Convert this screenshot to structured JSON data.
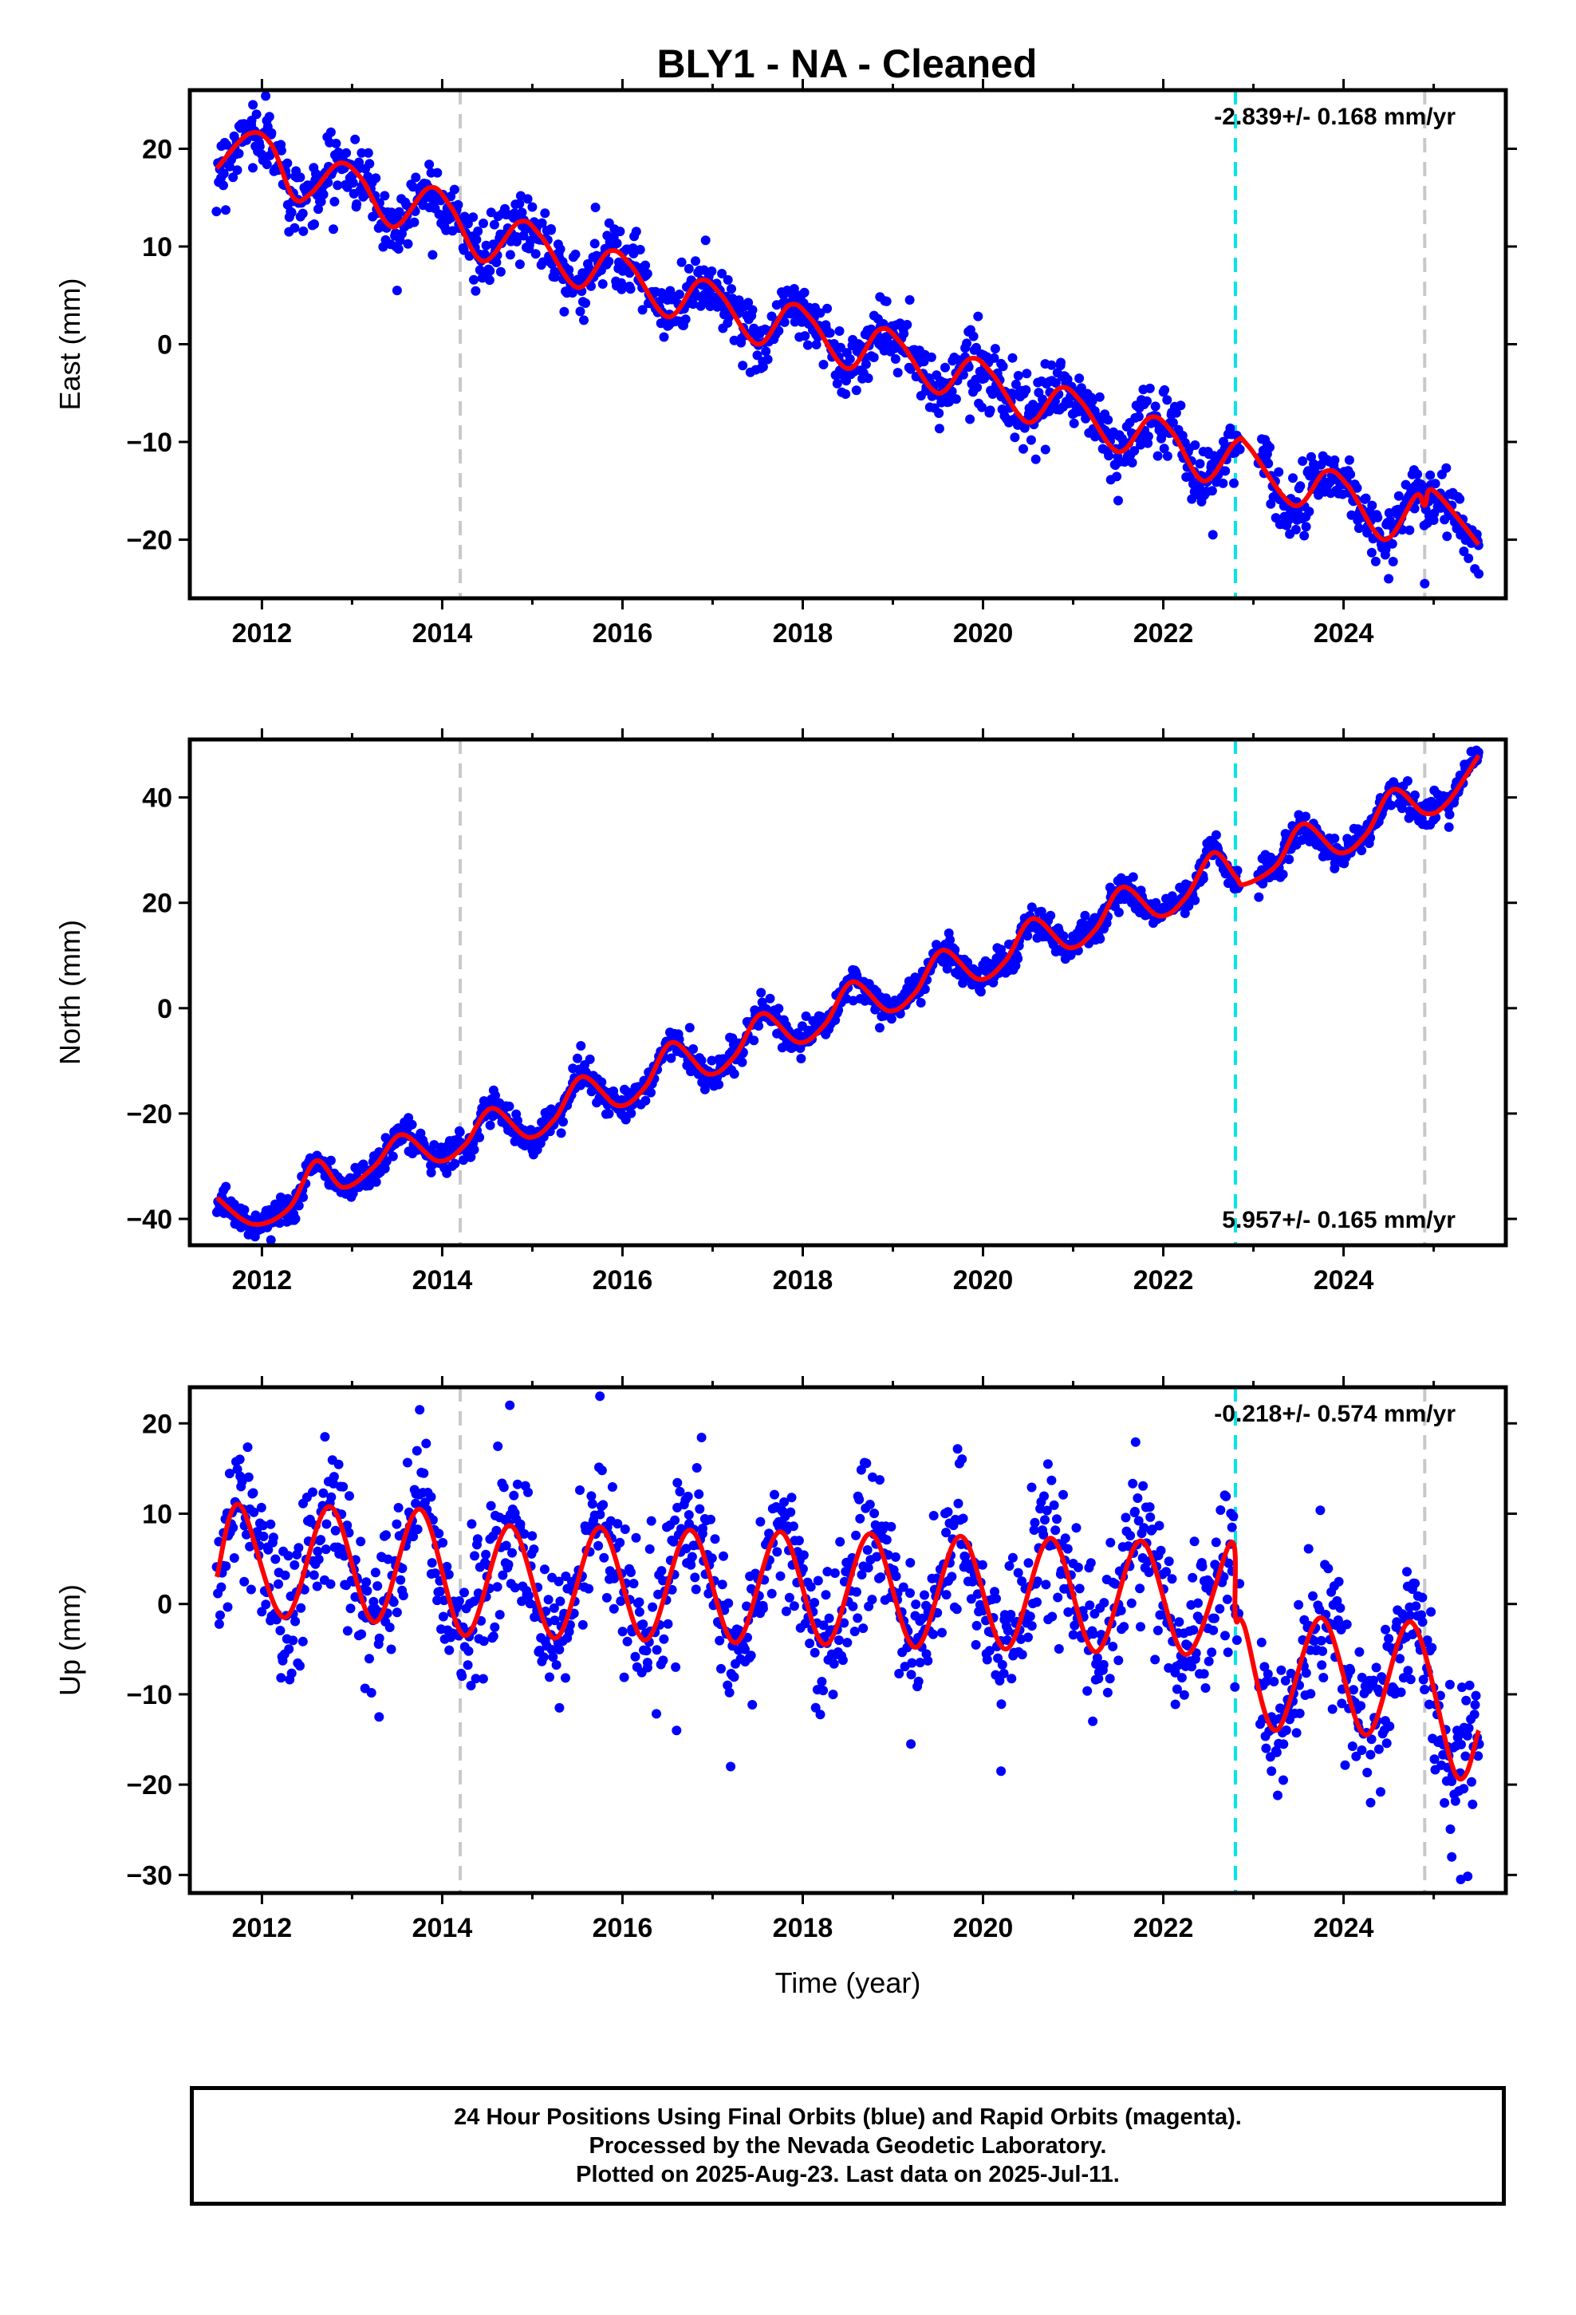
{
  "title": "BLY1  - NA - Cleaned",
  "footer": {
    "line1": "24 Hour Positions Using Final Orbits (blue) and Rapid Orbits (magenta).",
    "line2": "Processed by the Nevada Geodetic Laboratory.",
    "line3": "Plotted on 2025-Aug-23. Last data on 2025-Jul-11."
  },
  "colors": {
    "data_points": "#0000ff",
    "model_line": "#ff0000",
    "equipment_change": "#c8c8c8",
    "earthquake": "#00e5e5"
  },
  "chart_data": [
    {
      "type": "scatter",
      "component": "east",
      "ylabel": "East (mm)",
      "xlabel": "",
      "xlim": [
        2011.2,
        2025.8
      ],
      "ylim": [
        -26,
        26
      ],
      "xticks": [
        2012,
        2014,
        2016,
        2018,
        2020,
        2022,
        2024
      ],
      "yticks": [
        -20,
        -10,
        0,
        10,
        20
      ],
      "rate_text": "-2.839+/- 0.168 mm/yr",
      "rate_mm_per_yr": -2.839,
      "rate_sigma": 0.168,
      "gray_lines": [
        2014.2,
        2024.9
      ],
      "cyan_lines": [
        2022.8
      ],
      "model_knots": [
        [
          2011.5,
          18.0
        ],
        [
          2011.85,
          21.5
        ],
        [
          2012.1,
          20.5
        ],
        [
          2012.35,
          15.0
        ],
        [
          2012.55,
          15.5
        ],
        [
          2012.85,
          18.5
        ],
        [
          2013.1,
          17.0
        ],
        [
          2013.45,
          12.0
        ],
        [
          2013.85,
          16.0
        ],
        [
          2014.1,
          14.0
        ],
        [
          2014.45,
          8.5
        ],
        [
          2014.85,
          12.5
        ],
        [
          2015.1,
          11.0
        ],
        [
          2015.5,
          5.8
        ],
        [
          2015.85,
          9.5
        ],
        [
          2016.1,
          8.0
        ],
        [
          2016.5,
          2.8
        ],
        [
          2016.85,
          6.5
        ],
        [
          2017.1,
          5.0
        ],
        [
          2017.5,
          0.0
        ],
        [
          2017.85,
          4.0
        ],
        [
          2018.1,
          2.5
        ],
        [
          2018.5,
          -2.5
        ],
        [
          2018.85,
          1.5
        ],
        [
          2019.1,
          0.0
        ],
        [
          2019.5,
          -5.0
        ],
        [
          2019.85,
          -1.5
        ],
        [
          2020.1,
          -3.0
        ],
        [
          2020.5,
          -8.0
        ],
        [
          2020.85,
          -4.5
        ],
        [
          2021.1,
          -6.0
        ],
        [
          2021.5,
          -11.0
        ],
        [
          2021.85,
          -7.5
        ],
        [
          2022.1,
          -9.0
        ],
        [
          2022.45,
          -14.0
        ],
        [
          2022.8,
          -10.0
        ],
        [
          2022.95,
          -10.5
        ],
        [
          2023.45,
          -16.5
        ],
        [
          2023.8,
          -13.0
        ],
        [
          2024.05,
          -14.5
        ],
        [
          2024.45,
          -20.0
        ],
        [
          2024.8,
          -15.5
        ],
        [
          2024.9,
          -16.5
        ],
        [
          2025.0,
          -15.0
        ],
        [
          2025.5,
          -20.5
        ]
      ],
      "scatter_noise_mm": 1.6,
      "outliers": [
        [
          2011.9,
          24.5
        ],
        [
          2012.3,
          11.5
        ],
        [
          2013.5,
          5.5
        ],
        [
          2015.7,
          14.0
        ],
        [
          2021.5,
          -16.0
        ],
        [
          2022.55,
          -19.5
        ],
        [
          2024.5,
          -24.0
        ],
        [
          2024.9,
          -24.5
        ],
        [
          2025.5,
          -23.5
        ],
        [
          2025.0,
          -18.0
        ]
      ]
    },
    {
      "type": "scatter",
      "component": "north",
      "ylabel": "North (mm)",
      "xlabel": "",
      "xlim": [
        2011.2,
        2025.8
      ],
      "ylim": [
        -45,
        51
      ],
      "xticks": [
        2012,
        2014,
        2016,
        2018,
        2020,
        2022,
        2024
      ],
      "yticks": [
        -40,
        -20,
        0,
        20,
        40
      ],
      "rate_text": "5.957+/- 0.165 mm/yr",
      "rate_mm_per_yr": 5.957,
      "rate_sigma": 0.165,
      "gray_lines": [
        2014.2,
        2024.9
      ],
      "cyan_lines": [
        2022.8
      ],
      "model_knots": [
        [
          2011.5,
          -36.0
        ],
        [
          2011.9,
          -41.0
        ],
        [
          2012.3,
          -38.0
        ],
        [
          2012.6,
          -29.0
        ],
        [
          2012.9,
          -34.0
        ],
        [
          2013.25,
          -30.0
        ],
        [
          2013.55,
          -24.0
        ],
        [
          2013.95,
          -29.0
        ],
        [
          2014.25,
          -26.0
        ],
        [
          2014.55,
          -19.0
        ],
        [
          2014.95,
          -24.5
        ],
        [
          2015.25,
          -21.0
        ],
        [
          2015.55,
          -13.0
        ],
        [
          2015.95,
          -18.5
        ],
        [
          2016.25,
          -15.0
        ],
        [
          2016.55,
          -6.5
        ],
        [
          2016.95,
          -12.5
        ],
        [
          2017.25,
          -9.0
        ],
        [
          2017.55,
          -1.0
        ],
        [
          2017.95,
          -6.5
        ],
        [
          2018.25,
          -3.0
        ],
        [
          2018.55,
          5.0
        ],
        [
          2018.95,
          -0.5
        ],
        [
          2019.25,
          3.0
        ],
        [
          2019.55,
          11.0
        ],
        [
          2019.95,
          5.5
        ],
        [
          2020.25,
          9.0
        ],
        [
          2020.55,
          17.0
        ],
        [
          2020.95,
          11.5
        ],
        [
          2021.25,
          15.0
        ],
        [
          2021.55,
          23.0
        ],
        [
          2021.95,
          17.5
        ],
        [
          2022.25,
          21.0
        ],
        [
          2022.55,
          29.5
        ],
        [
          2022.8,
          25.0
        ],
        [
          2022.9,
          23.5
        ],
        [
          2023.25,
          27.0
        ],
        [
          2023.55,
          35.0
        ],
        [
          2023.95,
          29.5
        ],
        [
          2024.25,
          33.0
        ],
        [
          2024.55,
          41.5
        ],
        [
          2024.9,
          37.0
        ],
        [
          2025.15,
          39.0
        ],
        [
          2025.5,
          48.0
        ]
      ],
      "scatter_noise_mm": 1.5,
      "outliers": [
        [
          2011.85,
          -43.0
        ],
        [
          2012.1,
          -44.0
        ],
        [
          2015.0,
          -27.0
        ],
        [
          2023.7,
          31.0
        ],
        [
          2023.9,
          26.5
        ]
      ]
    },
    {
      "type": "scatter",
      "component": "up",
      "ylabel": "Up (mm)",
      "xlabel": "Time (year)",
      "xlim": [
        2011.2,
        2025.8
      ],
      "ylim": [
        -32,
        24
      ],
      "xticks": [
        2012,
        2014,
        2016,
        2018,
        2020,
        2022,
        2024
      ],
      "yticks": [
        -30,
        -20,
        -10,
        0,
        10,
        20
      ],
      "rate_text": "-0.218+/- 0.574 mm/yr",
      "rate_mm_per_yr": -0.218,
      "rate_sigma": 0.574,
      "gray_lines": [
        2014.2,
        2024.9
      ],
      "cyan_lines": [
        2022.8
      ],
      "model_knots": [
        [
          2011.5,
          3.0
        ],
        [
          2011.75,
          11.0
        ],
        [
          2012.25,
          -1.5
        ],
        [
          2012.75,
          10.8
        ],
        [
          2013.25,
          -2.0
        ],
        [
          2013.75,
          10.5
        ],
        [
          2014.25,
          -3.5
        ],
        [
          2014.75,
          8.7
        ],
        [
          2015.25,
          -3.8
        ],
        [
          2015.75,
          8.5
        ],
        [
          2016.25,
          -4.0
        ],
        [
          2016.75,
          8.2
        ],
        [
          2017.25,
          -4.3
        ],
        [
          2017.75,
          8.0
        ],
        [
          2018.25,
          -4.5
        ],
        [
          2018.75,
          7.8
        ],
        [
          2019.25,
          -4.8
        ],
        [
          2019.75,
          7.5
        ],
        [
          2020.25,
          -5.0
        ],
        [
          2020.75,
          7.3
        ],
        [
          2021.25,
          -5.3
        ],
        [
          2021.75,
          7.0
        ],
        [
          2022.25,
          -5.6
        ],
        [
          2022.75,
          6.8
        ],
        [
          2022.8,
          -1.5
        ],
        [
          2022.9,
          -2.5
        ],
        [
          2023.25,
          -14.0
        ],
        [
          2023.75,
          -1.5
        ],
        [
          2024.25,
          -14.5
        ],
        [
          2024.75,
          -2.0
        ],
        [
          2025.25,
          -19.0
        ],
        [
          2025.5,
          -14.0
        ]
      ],
      "scatter_noise_mm": 4.0,
      "outliers": [
        [
          2015.75,
          23.0
        ],
        [
          2014.75,
          22.0
        ],
        [
          2013.75,
          21.5
        ],
        [
          2013.3,
          -12.5
        ],
        [
          2015.3,
          -11.5
        ],
        [
          2016.6,
          -14.0
        ],
        [
          2017.2,
          -18.0
        ],
        [
          2019.2,
          -15.5
        ],
        [
          2020.2,
          -18.5
        ],
        [
          2023.2,
          -18.5
        ],
        [
          2024.3,
          -22.0
        ],
        [
          2025.3,
          -30.5
        ],
        [
          2025.2,
          -28.0
        ]
      ]
    }
  ]
}
